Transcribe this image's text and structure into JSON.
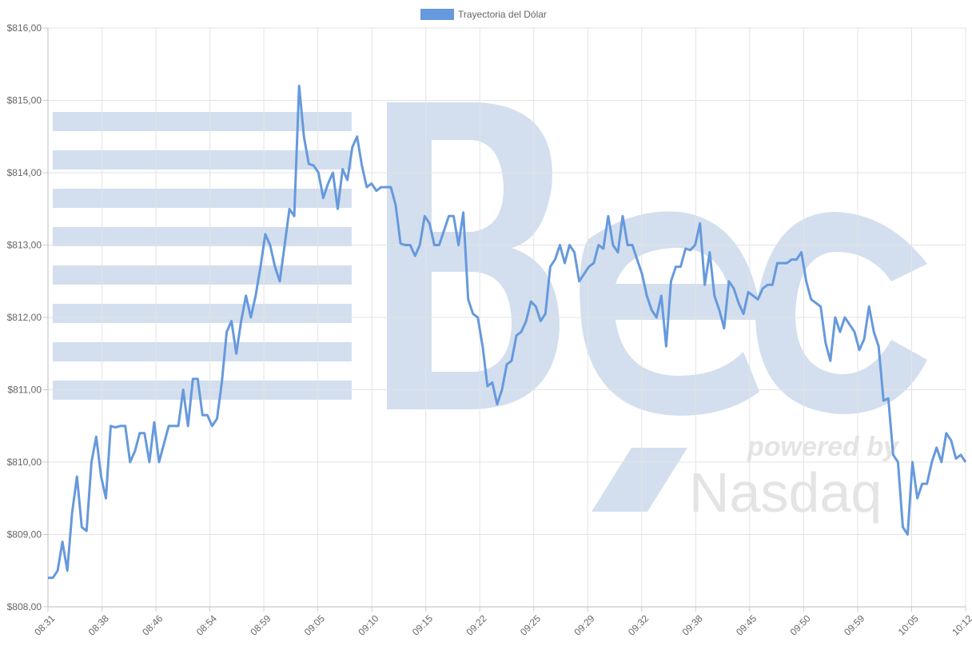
{
  "chart_data": {
    "type": "line",
    "legend": {
      "label": "Trayectoria del Dólar",
      "position": "top-center",
      "color": "#6699dd"
    },
    "line_color": "#6699dd",
    "grid": true,
    "xlabel": "",
    "ylabel": "",
    "ylim": [
      808,
      816
    ],
    "y_ticks": [
      "$808,00",
      "$809,00",
      "$810,00",
      "$811,00",
      "$812,00",
      "$813,00",
      "$814,00",
      "$815,00",
      "$816,00"
    ],
    "x_ticks": [
      "08:31",
      "08:38",
      "08:46",
      "08:54",
      "08:59",
      "09:05",
      "09:10",
      "09:15",
      "09:22",
      "09:25",
      "09:29",
      "09:32",
      "09:38",
      "09:45",
      "09:50",
      "09:59",
      "10:05",
      "10:12"
    ],
    "values": [
      808.4,
      808.4,
      808.5,
      808.9,
      808.5,
      809.3,
      809.8,
      809.1,
      809.05,
      810.0,
      810.35,
      809.8,
      809.5,
      810.5,
      810.48,
      810.5,
      810.5,
      810.0,
      810.15,
      810.4,
      810.4,
      810.0,
      810.55,
      810.0,
      810.25,
      810.5,
      810.5,
      810.5,
      811.0,
      810.5,
      811.15,
      811.15,
      810.65,
      810.65,
      810.5,
      810.6,
      811.1,
      811.8,
      811.95,
      811.5,
      811.95,
      812.3,
      812.0,
      812.3,
      812.7,
      813.15,
      813.0,
      812.7,
      812.5,
      813.0,
      813.5,
      813.4,
      815.2,
      814.5,
      814.12,
      814.1,
      814.0,
      813.65,
      813.85,
      814.0,
      813.5,
      814.05,
      813.9,
      814.35,
      814.5,
      814.1,
      813.8,
      813.85,
      813.75,
      813.8,
      813.8,
      813.8,
      813.55,
      813.02,
      813.0,
      813.0,
      812.85,
      813.0,
      813.4,
      813.3,
      813.0,
      813.0,
      813.2,
      813.4,
      813.4,
      813.0,
      813.45,
      812.25,
      812.05,
      812.0,
      811.6,
      811.05,
      811.1,
      810.8,
      811.0,
      811.35,
      811.4,
      811.75,
      811.8,
      811.95,
      812.22,
      812.15,
      811.95,
      812.05,
      812.7,
      812.8,
      813.0,
      812.75,
      813.0,
      812.9,
      812.5,
      812.6,
      812.7,
      812.75,
      813.0,
      812.95,
      813.4,
      813.0,
      812.9,
      813.4,
      813.0,
      813.0,
      812.8,
      812.6,
      812.3,
      812.1,
      812.0,
      812.3,
      811.6,
      812.5,
      812.7,
      812.7,
      812.95,
      812.93,
      813.0,
      813.3,
      812.45,
      812.9,
      812.3,
      812.1,
      811.85,
      812.5,
      812.4,
      812.2,
      812.05,
      812.35,
      812.3,
      812.25,
      812.4,
      812.45,
      812.45,
      812.75,
      812.75,
      812.75,
      812.8,
      812.8,
      812.9,
      812.5,
      812.25,
      812.2,
      812.15,
      811.65,
      811.4,
      812.0,
      811.8,
      812.0,
      811.9,
      811.8,
      811.55,
      811.7,
      812.15,
      811.8,
      811.6,
      810.85,
      810.88,
      810.1,
      810.0,
      809.1,
      809.0,
      810.0,
      809.5,
      809.7,
      809.7,
      810.0,
      810.2,
      810.0,
      810.4,
      810.3,
      810.05,
      810.1,
      810.0
    ]
  }
}
